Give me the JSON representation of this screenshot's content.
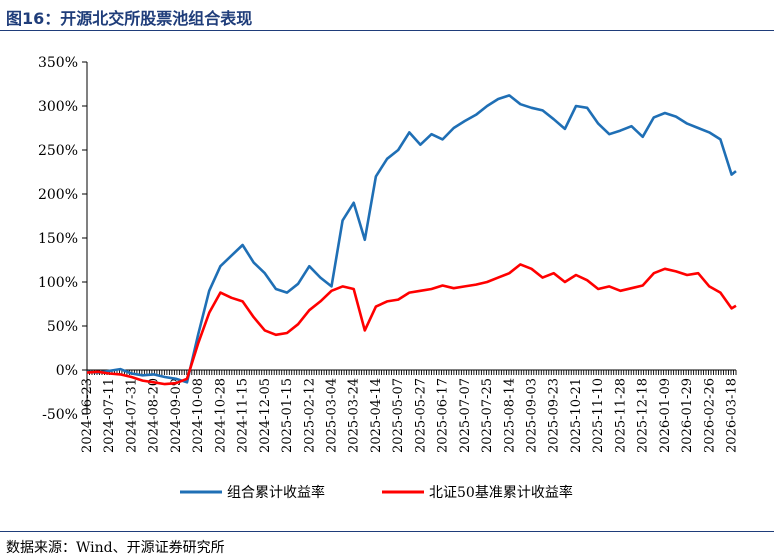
{
  "figure": {
    "title": "图16：开源北交所股票池组合表现",
    "source": "数据来源：Wind、开源证券研究所"
  },
  "chart_data": {
    "type": "line",
    "ylim": [
      -50,
      350
    ],
    "yticks": [
      -50,
      0,
      50,
      100,
      150,
      200,
      250,
      300,
      350
    ],
    "ytick_labels": [
      "-50%",
      "0%",
      "50%",
      "100%",
      "150%",
      "200%",
      "250%",
      "300%",
      "350%"
    ],
    "x_tick_labels": [
      "2024-06-23",
      "2024-07-11",
      "2024-07-31",
      "2024-08-20",
      "2024-09-09",
      "2024-10-08",
      "2024-10-28",
      "2024-11-15",
      "2024-12-05",
      "2025-01-15",
      "2025-02-12",
      "2025-03-04",
      "2025-03-24",
      "2025-04-14",
      "2025-05-07",
      "2025-05-27",
      "2025-06-17",
      "2025-07-07",
      "2025-07-25",
      "2025-08-14",
      "2025-09-03",
      "2025-09-23",
      "2025-10-21",
      "2025-11-10",
      "2025-11-28",
      "2025-12-18",
      "2026-01-09",
      "2026-01-29",
      "2026-02-26",
      "2026-03-18"
    ],
    "legend_position": "bottom",
    "grid": false,
    "series": [
      {
        "name": "组合累计收益率",
        "color": "#1f6fb5",
        "x": [
          0,
          0.5,
          1,
          1.5,
          2,
          2.5,
          3,
          3.5,
          4,
          4.5,
          5,
          5.5,
          6,
          6.5,
          7,
          7.5,
          8,
          8.5,
          9,
          9.5,
          10,
          10.5,
          11,
          11.5,
          12,
          12.5,
          13,
          13.5,
          14,
          14.5,
          15,
          15.5,
          16,
          16.5,
          17,
          17.5,
          18,
          18.5,
          19,
          19.5,
          20,
          20.5,
          21,
          21.5,
          22,
          22.5,
          23,
          23.5,
          24,
          24.5,
          25,
          25.5,
          26,
          26.5,
          27,
          27.5,
          28,
          28.5,
          29,
          29.2
        ],
        "values": [
          -2,
          -3,
          -1,
          1,
          -4,
          -6,
          -5,
          -8,
          -10,
          -14,
          40,
          90,
          118,
          130,
          142,
          122,
          110,
          92,
          88,
          98,
          118,
          105,
          95,
          170,
          190,
          148,
          220,
          240,
          250,
          270,
          256,
          268,
          262,
          275,
          283,
          290,
          300,
          308,
          312,
          302,
          298,
          295,
          285,
          274,
          300,
          298,
          280,
          268,
          272,
          277,
          265,
          287,
          292,
          288,
          280,
          275,
          270,
          262,
          222,
          226
        ],
        "end_label": ""
      },
      {
        "name": "北证50基准累计收益率",
        "color": "#ff0000",
        "x": [
          0,
          0.5,
          1,
          1.5,
          2,
          2.5,
          3,
          3.5,
          4,
          4.5,
          5,
          5.5,
          6,
          6.5,
          7,
          7.5,
          8,
          8.5,
          9,
          9.5,
          10,
          10.5,
          11,
          11.5,
          12,
          12.5,
          13,
          13.5,
          14,
          14.5,
          15,
          15.5,
          16,
          16.5,
          17,
          17.5,
          18,
          18.5,
          19,
          19.5,
          20,
          20.5,
          21,
          21.5,
          22,
          22.5,
          23,
          23.5,
          24,
          24.5,
          25,
          25.5,
          26,
          26.5,
          27,
          27.5,
          28,
          28.5,
          29,
          29.2
        ],
        "values": [
          -3,
          -2,
          -4,
          -5,
          -8,
          -12,
          -14,
          -16,
          -15,
          -10,
          30,
          65,
          88,
          82,
          78,
          60,
          45,
          40,
          42,
          52,
          68,
          78,
          90,
          95,
          92,
          45,
          72,
          78,
          80,
          88,
          90,
          92,
          96,
          93,
          95,
          97,
          100,
          105,
          110,
          120,
          115,
          105,
          110,
          100,
          108,
          102,
          92,
          95,
          90,
          93,
          96,
          110,
          115,
          112,
          108,
          110,
          95,
          88,
          70,
          73
        ],
        "end_label": ""
      }
    ]
  }
}
